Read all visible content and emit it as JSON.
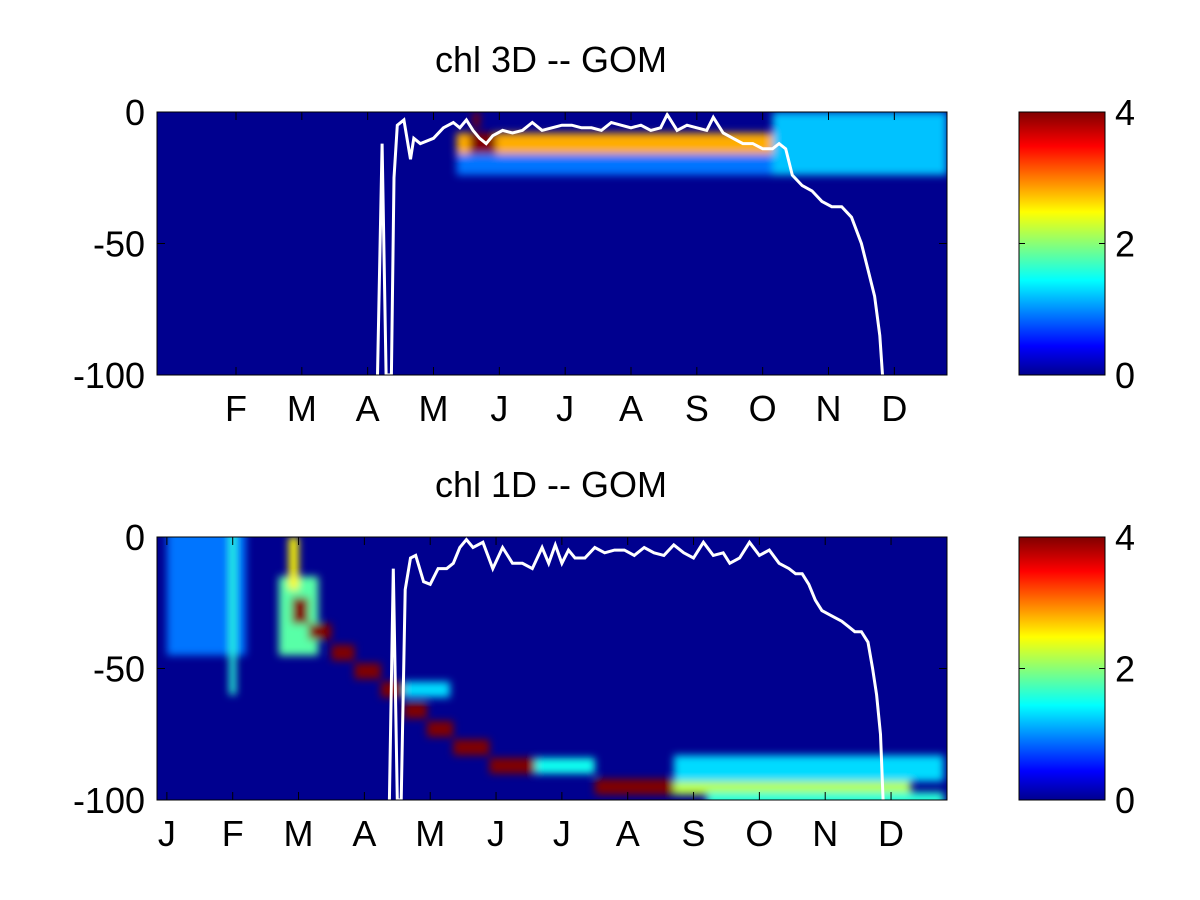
{
  "colors": {
    "background": "#ffffff",
    "contour_line": "#ffffff",
    "colormap": "jet",
    "colormap_stops": [
      "#00008f",
      "#0000ff",
      "#00ffff",
      "#ffff00",
      "#ff0000",
      "#800000"
    ]
  },
  "chart_data": [
    {
      "type": "heatmap",
      "title": "chl 3D   -- GOM",
      "xlabel": "",
      "ylabel": "",
      "x_unit": "month",
      "xlim": [
        0.8,
        12.8
      ],
      "ylim": [
        -100,
        0
      ],
      "x_ticks": [
        2,
        3,
        4,
        5,
        6,
        7,
        8,
        9,
        10,
        11,
        12
      ],
      "x_tick_labels": [
        "F",
        "M",
        "A",
        "M",
        "J",
        "J",
        "A",
        "S",
        "O",
        "N",
        "D"
      ],
      "y_ticks": [
        0,
        -50,
        -100
      ],
      "y_tick_labels": [
        "0",
        "-50",
        "-100"
      ],
      "colorbar": {
        "range": [
          0,
          4
        ],
        "ticks": [
          0,
          2,
          4
        ],
        "tick_labels": [
          "0",
          "2",
          "4"
        ]
      },
      "features": [
        {
          "x": [
            5.35,
            10.15
          ],
          "y_center": -13,
          "y_half_width": 5,
          "value": 2.8
        },
        {
          "x": [
            5.55,
            5.95
          ],
          "y_center": -12,
          "y_half_width": 4,
          "value": 4
        },
        {
          "x": [
            5.6,
            5.7
          ],
          "y_center": -3,
          "y_half_width": 3,
          "value": 4
        },
        {
          "x": [
            5.35,
            10.15
          ],
          "y_center": -20,
          "y_half_width": 4,
          "value": 0.9
        },
        {
          "x": [
            10.15,
            12.8
          ],
          "y_center": -12,
          "y_half_width": 12,
          "value": 1.2
        }
      ],
      "contour_line": {
        "x": [
          4.15,
          4.22,
          4.28,
          4.36,
          4.4,
          4.45,
          4.55,
          4.65,
          4.7,
          4.8,
          5.0,
          5.15,
          5.3,
          5.4,
          5.5,
          5.6,
          5.7,
          5.8,
          5.9,
          6.05,
          6.2,
          6.35,
          6.5,
          6.65,
          6.8,
          6.95,
          7.1,
          7.25,
          7.4,
          7.55,
          7.7,
          7.85,
          8.0,
          8.15,
          8.3,
          8.45,
          8.55,
          8.7,
          8.85,
          9.0,
          9.15,
          9.25,
          9.4,
          9.55,
          9.7,
          9.85,
          10.0,
          10.15,
          10.25,
          10.35,
          10.45,
          10.6,
          10.75,
          10.9,
          11.05,
          11.2,
          11.35,
          11.5,
          11.6,
          11.7,
          11.78,
          11.82
        ],
        "y": [
          -100,
          -12,
          -100,
          -100,
          -25,
          -5,
          -3,
          -18,
          -10,
          -12,
          -10,
          -6,
          -4,
          -6,
          -3,
          -7,
          -10,
          -12,
          -9,
          -7,
          -8,
          -7,
          -4,
          -7,
          -6,
          -5,
          -5,
          -6,
          -6,
          -7,
          -4,
          -5,
          -6,
          -5,
          -7,
          -6,
          -1,
          -7,
          -5,
          -6,
          -7,
          -2,
          -8,
          -10,
          -12,
          -12,
          -14,
          -14,
          -12,
          -14,
          -24,
          -28,
          -30,
          -34,
          -36,
          -36,
          -40,
          -50,
          -60,
          -70,
          -85,
          -100
        ]
      }
    },
    {
      "type": "heatmap",
      "title": "chl 1D   -- GOM",
      "xlabel": "",
      "ylabel": "",
      "x_unit": "month",
      "xlim": [
        0.85,
        12.85
      ],
      "ylim": [
        -100,
        0
      ],
      "x_ticks": [
        1,
        2,
        3,
        4,
        5,
        6,
        7,
        8,
        9,
        10,
        11,
        12
      ],
      "x_tick_labels": [
        "J",
        "F",
        "M",
        "A",
        "M",
        "J",
        "J",
        "A",
        "S",
        "O",
        "N",
        "D"
      ],
      "y_ticks": [
        0,
        -50,
        -100
      ],
      "y_tick_labels": [
        "0",
        "-50",
        "-100"
      ],
      "colorbar": {
        "range": [
          0,
          4
        ],
        "ticks": [
          0,
          2,
          4
        ],
        "tick_labels": [
          "0",
          "2",
          "4"
        ]
      },
      "features": [
        {
          "x": [
            1.0,
            2.2
          ],
          "y_center": -15,
          "y_half_width": 30,
          "value": 0.9
        },
        {
          "x": [
            1.95,
            2.05
          ],
          "y_center": -25,
          "y_half_width": 35,
          "value": 1.6
        },
        {
          "x": [
            2.7,
            3.3
          ],
          "y_center": -30,
          "y_half_width": 15,
          "value": 1.8
        },
        {
          "x": [
            2.85,
            3.0
          ],
          "y_center": -10,
          "y_half_width": 10,
          "value": 2.5
        },
        {
          "x": [
            2.9,
            3.15
          ],
          "y_center": -28,
          "y_half_width": 5,
          "value": 4
        },
        {
          "x": [
            3.15,
            3.5
          ],
          "y_center": -36,
          "y_half_width": 3,
          "value": 4
        },
        {
          "x": [
            3.5,
            3.85
          ],
          "y_center": -44,
          "y_half_width": 3,
          "value": 4
        },
        {
          "x": [
            3.85,
            4.25
          ],
          "y_center": -51,
          "y_half_width": 3,
          "value": 4
        },
        {
          "x": [
            4.25,
            4.6
          ],
          "y_center": -58,
          "y_half_width": 3,
          "value": 4
        },
        {
          "x": [
            4.6,
            5.3
          ],
          "y_center": -58,
          "y_half_width": 3,
          "value": 1.3
        },
        {
          "x": [
            4.6,
            4.95
          ],
          "y_center": -66,
          "y_half_width": 3,
          "value": 4
        },
        {
          "x": [
            4.95,
            5.35
          ],
          "y_center": -73,
          "y_half_width": 3,
          "value": 4
        },
        {
          "x": [
            5.35,
            5.9
          ],
          "y_center": -80,
          "y_half_width": 3,
          "value": 4
        },
        {
          "x": [
            5.9,
            6.6
          ],
          "y_center": -87,
          "y_half_width": 3,
          "value": 4
        },
        {
          "x": [
            6.6,
            7.5
          ],
          "y_center": -87,
          "y_half_width": 3,
          "value": 1.5
        },
        {
          "x": [
            7.5,
            8.7
          ],
          "y_center": -95,
          "y_half_width": 3,
          "value": 4
        },
        {
          "x": [
            8.7,
            12.3
          ],
          "y_center": -95,
          "y_half_width": 3,
          "value": 2.2
        },
        {
          "x": [
            8.7,
            12.8
          ],
          "y_center": -88,
          "y_half_width": 5,
          "value": 1.3
        },
        {
          "x": [
            9.2,
            12.8
          ],
          "y_center": -100,
          "y_half_width": 3,
          "value": 1.6
        }
      ],
      "contour_line": {
        "x": [
          4.38,
          4.44,
          4.5,
          4.56,
          4.62,
          4.7,
          4.78,
          4.9,
          5.0,
          5.12,
          5.25,
          5.35,
          5.45,
          5.55,
          5.65,
          5.8,
          5.95,
          6.1,
          6.25,
          6.4,
          6.55,
          6.7,
          6.8,
          6.9,
          7.0,
          7.1,
          7.2,
          7.35,
          7.5,
          7.65,
          7.8,
          7.95,
          8.1,
          8.25,
          8.4,
          8.55,
          8.7,
          8.85,
          9.0,
          9.15,
          9.3,
          9.45,
          9.55,
          9.7,
          9.85,
          10.0,
          10.15,
          10.3,
          10.45,
          10.55,
          10.65,
          10.75,
          10.85,
          10.95,
          11.1,
          11.25,
          11.35,
          11.45,
          11.55,
          11.65,
          11.72,
          11.78,
          11.84,
          11.88
        ],
        "y": [
          -100,
          -12,
          -100,
          -100,
          -20,
          -8,
          -7,
          -17,
          -18,
          -12,
          -12,
          -10,
          -4,
          -1,
          -4,
          -2,
          -12,
          -4,
          -10,
          -10,
          -12,
          -4,
          -10,
          -3,
          -10,
          -5,
          -8,
          -8,
          -4,
          -6,
          -5,
          -5,
          -7,
          -4,
          -6,
          -7,
          -3,
          -6,
          -8,
          -2,
          -7,
          -6,
          -10,
          -8,
          -2,
          -7,
          -5,
          -10,
          -12,
          -14,
          -14,
          -18,
          -24,
          -28,
          -30,
          -32,
          -34,
          -36,
          -36,
          -40,
          -50,
          -60,
          -75,
          -100
        ]
      }
    }
  ]
}
